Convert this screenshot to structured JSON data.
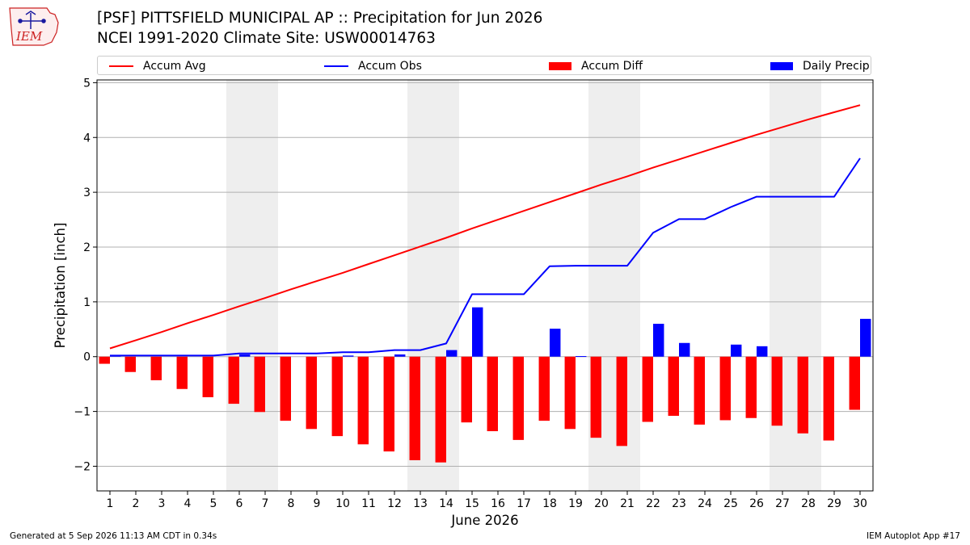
{
  "header": {
    "title_line1": "[PSF] PITTSFIELD MUNICIPAL AP :: Precipitation for Jun 2026",
    "title_line2": "NCEI 1991-2020 Climate Site: USW00014763"
  },
  "logo": {
    "text": "IEM"
  },
  "footer": {
    "generated": "Generated at 5 Sep 2026 11:13 AM CDT in 0.34s",
    "app": "IEM Autoplot App #17"
  },
  "colors": {
    "accum_avg": "#ff0000",
    "accum_obs": "#0000ff",
    "accum_diff": "#ff0000",
    "daily_precip": "#0000ff",
    "weekend_shade": "#eeeeee",
    "grid": "#b0b0b0"
  },
  "chart_data": {
    "type": "bar",
    "xlabel": "June 2026",
    "ylabel": "Precipitation [inch]",
    "ylim": [
      -2.45,
      5.05
    ],
    "yticks": [
      -2,
      -1,
      0,
      1,
      2,
      3,
      4,
      5
    ],
    "ytick_labels": [
      "−2",
      "−1",
      "0",
      "1",
      "2",
      "3",
      "4",
      "5"
    ],
    "x": [
      1,
      2,
      3,
      4,
      5,
      6,
      7,
      8,
      9,
      10,
      11,
      12,
      13,
      14,
      15,
      16,
      17,
      18,
      19,
      20,
      21,
      22,
      23,
      24,
      25,
      26,
      27,
      28,
      29,
      30
    ],
    "xlim": [
      0.5,
      30.5
    ],
    "grid": "horizontal",
    "legend_position": "top",
    "weekend_shading": [
      [
        6,
        7
      ],
      [
        13,
        14
      ],
      [
        20,
        21
      ],
      [
        27,
        28
      ]
    ],
    "series": [
      {
        "name": "Accum Avg",
        "kind": "line",
        "values": [
          0.15,
          0.3,
          0.45,
          0.61,
          0.76,
          0.92,
          1.07,
          1.23,
          1.38,
          1.53,
          1.69,
          1.85,
          2.01,
          2.17,
          2.34,
          2.5,
          2.66,
          2.82,
          2.98,
          3.14,
          3.29,
          3.45,
          3.6,
          3.75,
          3.9,
          4.05,
          4.19,
          4.33,
          4.46,
          4.59
        ]
      },
      {
        "name": "Accum Obs",
        "kind": "line",
        "values": [
          0.02,
          0.02,
          0.02,
          0.02,
          0.02,
          0.06,
          0.06,
          0.06,
          0.06,
          0.08,
          0.08,
          0.12,
          0.12,
          0.24,
          1.14,
          1.14,
          1.14,
          1.65,
          1.66,
          1.66,
          1.66,
          2.26,
          2.51,
          2.51,
          2.73,
          2.92,
          2.92,
          2.92,
          2.92,
          3.62
        ]
      },
      {
        "name": "Accum Diff",
        "kind": "bar",
        "values": [
          -0.13,
          -0.28,
          -0.43,
          -0.59,
          -0.74,
          -0.86,
          -1.01,
          -1.17,
          -1.32,
          -1.45,
          -1.6,
          -1.73,
          -1.89,
          -1.93,
          -1.2,
          -1.36,
          -1.52,
          -1.17,
          -1.32,
          -1.48,
          -1.63,
          -1.19,
          -1.08,
          -1.24,
          -1.16,
          -1.12,
          -1.26,
          -1.4,
          -1.53,
          -0.97
        ]
      },
      {
        "name": "Daily Precip",
        "kind": "bar",
        "values": [
          0.02,
          0,
          0,
          0,
          0,
          0.04,
          0,
          0,
          0,
          0.02,
          0,
          0.04,
          0,
          0.12,
          0.9,
          0,
          0,
          0.51,
          0.01,
          0,
          0,
          0.6,
          0.25,
          0,
          0.22,
          0.19,
          0,
          0,
          0,
          0.69
        ]
      }
    ]
  }
}
